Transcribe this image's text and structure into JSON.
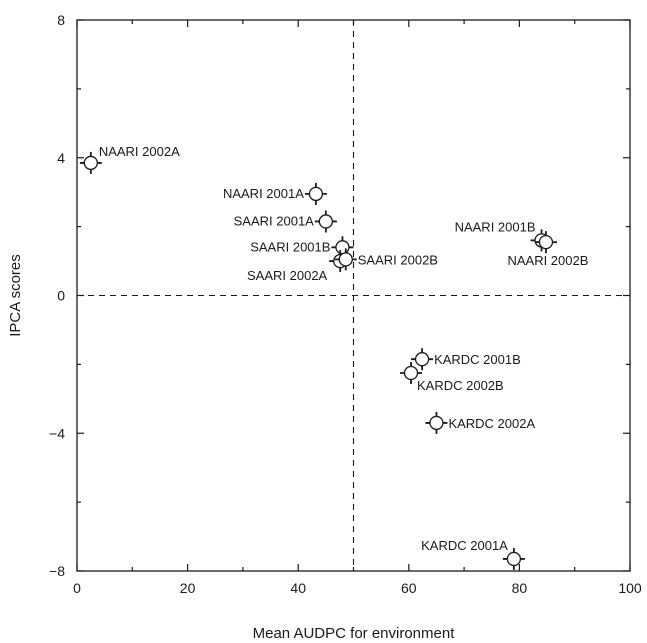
{
  "chart_data": {
    "type": "scatter",
    "title": "",
    "xlabel": "Mean AUDPC for environment",
    "ylabel": "IPCA scores",
    "xlim": [
      0,
      100
    ],
    "ylim": [
      -8,
      8
    ],
    "xticks": [
      0,
      20,
      40,
      60,
      80,
      100
    ],
    "yticks": [
      -8,
      -4,
      0,
      4,
      8
    ],
    "x_tick_labels": [
      "0",
      "20",
      "40",
      "60",
      "80",
      "100"
    ],
    "y_tick_labels": [
      "−8",
      "−4",
      "0",
      "4",
      "8"
    ],
    "reference_lines": {
      "x": 50,
      "y": 0,
      "style": "dashed"
    },
    "grid": false,
    "legend": "none",
    "marker": "open-circle-with-error-bars",
    "points": [
      {
        "label": "NAARI 2002A",
        "x": 2.5,
        "y": 3.85,
        "label_pos": "top-right"
      },
      {
        "label": "NAARI 2001A",
        "x": 43.2,
        "y": 2.95,
        "label_pos": "left"
      },
      {
        "label": "SAARI 2001A",
        "x": 45.0,
        "y": 2.15,
        "label_pos": "left"
      },
      {
        "label": "SAARI 2001B",
        "x": 48.0,
        "y": 1.4,
        "label_pos": "left"
      },
      {
        "label": "SAARI 2002A",
        "x": 47.6,
        "y": 1.0,
        "label_pos": "bottom-left"
      },
      {
        "label": "SAARI 2002B",
        "x": 48.6,
        "y": 1.05,
        "label_pos": "right"
      },
      {
        "label": "NAARI 2001B",
        "x": 84.0,
        "y": 1.6,
        "label_pos": "top-left"
      },
      {
        "label": "NAARI 2002B",
        "x": 84.8,
        "y": 1.55,
        "label_pos": "bottom"
      },
      {
        "label": "KARDC 2001B",
        "x": 62.4,
        "y": -1.85,
        "label_pos": "right"
      },
      {
        "label": "KARDC 2002B",
        "x": 60.4,
        "y": -2.25,
        "label_pos": "bottom-right"
      },
      {
        "label": "KARDC 2002A",
        "x": 65.0,
        "y": -3.7,
        "label_pos": "right"
      },
      {
        "label": "KARDC 2001A",
        "x": 79.0,
        "y": -7.65,
        "label_pos": "top-left"
      }
    ]
  }
}
